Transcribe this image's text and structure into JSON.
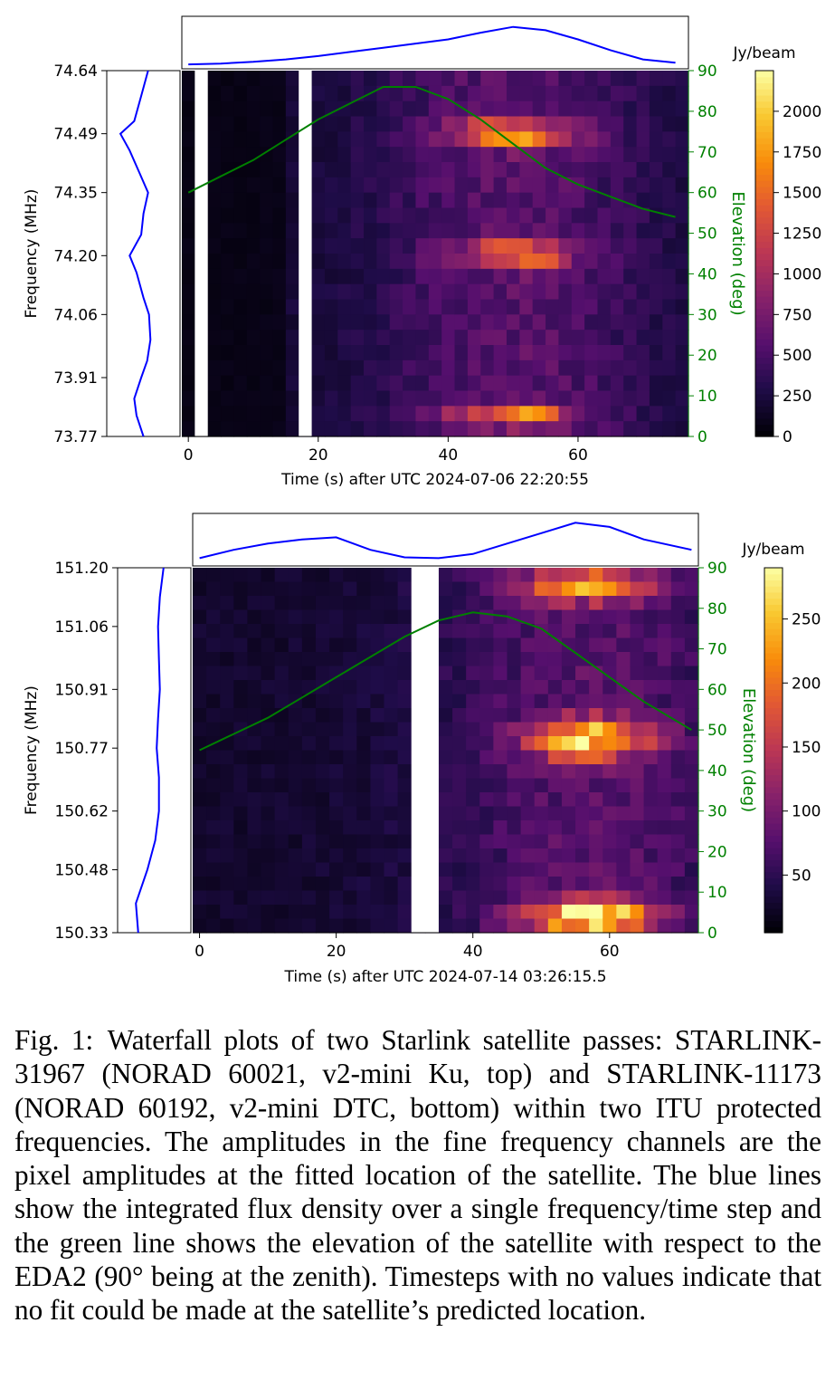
{
  "colors": {
    "profile": "#0000ff",
    "elevation": "#008000",
    "blank": "#ffffff",
    "colormap": "inferno"
  },
  "chart_data": [
    {
      "type": "heatmap",
      "subtitle": "top",
      "xlabel": "Time (s) after UTC 2024-07-06 22:20:55",
      "ylabel": "Frequency (MHz)",
      "y2label": "Elevation (deg)",
      "colorbar_label": "Jy/beam",
      "colorbar_ticks": [
        "0",
        "250",
        "500",
        "750",
        "1000",
        "1250",
        "1500",
        "1750",
        "2000"
      ],
      "colorbar_range": [
        0,
        2250
      ],
      "x_ticks": [
        "0",
        "20",
        "40",
        "60"
      ],
      "y_ticks": [
        "74.64",
        "74.49",
        "74.35",
        "74.20",
        "74.06",
        "73.91",
        "73.77"
      ],
      "y2_ticks": [
        "0",
        "10",
        "20",
        "30",
        "40",
        "50",
        "60",
        "70",
        "80",
        "90"
      ],
      "xlim": [
        -1,
        77
      ],
      "ylim": [
        73.77,
        74.64
      ],
      "y2lim": [
        0,
        90
      ],
      "n_time": 39,
      "n_freq": 24,
      "time_step_s": 2,
      "blank_time_s": [
        [
          1,
          3
        ],
        [
          17,
          19
        ]
      ],
      "peak_time_s": 50,
      "elevation": {
        "t": [
          0,
          5,
          10,
          15,
          20,
          25,
          30,
          35,
          40,
          45,
          50,
          55,
          60,
          65,
          70,
          75
        ],
        "deg": [
          60,
          64,
          68,
          73,
          78,
          82,
          86,
          86,
          83,
          78,
          72,
          66,
          62,
          59,
          56,
          54
        ]
      },
      "time_profile": {
        "t": [
          0,
          5,
          10,
          15,
          20,
          25,
          30,
          35,
          40,
          45,
          50,
          55,
          60,
          65,
          70,
          75
        ],
        "value": [
          0.02,
          0.04,
          0.08,
          0.14,
          0.22,
          0.32,
          0.42,
          0.52,
          0.62,
          0.78,
          0.92,
          0.84,
          0.62,
          0.36,
          0.14,
          0.06
        ]
      },
      "freq_profile": {
        "f": [
          74.64,
          74.58,
          74.52,
          74.49,
          74.45,
          74.4,
          74.35,
          74.3,
          74.25,
          74.2,
          74.16,
          74.1,
          74.06,
          74.0,
          73.95,
          73.91,
          73.86,
          73.82,
          73.77
        ],
        "value": [
          0.7,
          0.55,
          0.4,
          0.1,
          0.3,
          0.5,
          0.7,
          0.6,
          0.55,
          0.3,
          0.45,
          0.6,
          0.72,
          0.75,
          0.68,
          0.55,
          0.4,
          0.45,
          0.6
        ]
      },
      "bands": [
        {
          "freq_center": 74.49,
          "freq_sigma": 0.03,
          "amp": 1650
        },
        {
          "freq_center": 74.2,
          "freq_sigma": 0.03,
          "amp": 1350
        },
        {
          "freq_center": 73.82,
          "freq_sigma": 0.025,
          "amp": 1350
        }
      ]
    },
    {
      "type": "heatmap",
      "subtitle": "bottom",
      "xlabel": "Time (s) after UTC 2024-07-14 03:26:15.5",
      "ylabel": "Frequency (MHz)",
      "y2label": "Elevation (deg)",
      "colorbar_label": "Jy/beam",
      "colorbar_ticks": [
        "50",
        "100",
        "150",
        "200",
        "250"
      ],
      "colorbar_range": [
        5,
        290
      ],
      "x_ticks": [
        "0",
        "20",
        "40",
        "60"
      ],
      "y_ticks": [
        "151.20",
        "151.06",
        "150.91",
        "150.77",
        "150.62",
        "150.48",
        "150.33"
      ],
      "y2_ticks": [
        "0",
        "10",
        "20",
        "30",
        "40",
        "50",
        "60",
        "70",
        "80",
        "90"
      ],
      "xlim": [
        -1,
        73
      ],
      "ylim": [
        150.33,
        151.2
      ],
      "y2lim": [
        0,
        90
      ],
      "n_time": 37,
      "n_freq": 26,
      "time_step_s": 2,
      "blank_time_s": [
        [
          31,
          35
        ]
      ],
      "peak_time_s": 57,
      "elevation": {
        "t": [
          0,
          5,
          10,
          15,
          20,
          25,
          30,
          35,
          40,
          45,
          50,
          55,
          60,
          65,
          72
        ],
        "deg": [
          45,
          49,
          53,
          58,
          63,
          68,
          73,
          77,
          79,
          78,
          75,
          69,
          63,
          57,
          50
        ]
      },
      "time_profile": {
        "t": [
          0,
          5,
          10,
          15,
          20,
          25,
          30,
          35,
          40,
          45,
          50,
          55,
          60,
          65,
          72
        ],
        "value": [
          0.1,
          0.3,
          0.45,
          0.55,
          0.6,
          0.3,
          0.12,
          0.1,
          0.2,
          0.45,
          0.7,
          0.95,
          0.85,
          0.55,
          0.3
        ]
      },
      "freq_profile": {
        "f": [
          151.2,
          151.13,
          151.06,
          150.98,
          150.91,
          150.84,
          150.77,
          150.7,
          150.62,
          150.55,
          150.48,
          150.4,
          150.33
        ],
        "value": [
          0.8,
          0.72,
          0.68,
          0.7,
          0.72,
          0.68,
          0.65,
          0.7,
          0.7,
          0.62,
          0.45,
          0.2,
          0.25
        ]
      },
      "bands": [
        {
          "freq_center": 151.16,
          "freq_sigma": 0.04,
          "amp": 200
        },
        {
          "freq_center": 150.79,
          "freq_sigma": 0.05,
          "amp": 230
        },
        {
          "freq_center": 150.37,
          "freq_sigma": 0.04,
          "amp": 270
        }
      ]
    }
  ],
  "caption": {
    "label": "Fig. 1:",
    "text": "Waterfall plots of two Starlink satellite passes: STARLINK-31967 (NORAD 60021, v2-mini Ku, top) and STARLINK-11173 (NORAD 60192, v2-mini DTC, bottom) within two ITU protected frequencies. The amplitudes in the fine frequency channels are the pixel amplitudes at the fitted location of the satellite. The blue lines show the integrated flux density over a single frequency/time step and the green line shows the elevation of the satellite with respect to the EDA2 (90° being at the zenith). Timesteps with no values indicate that no fit could be made at the satellite’s predicted location."
  }
}
